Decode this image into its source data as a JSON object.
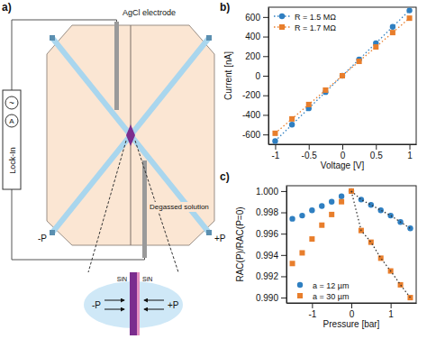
{
  "chart_data": [
    {
      "panel": "b)",
      "type": "scatter",
      "x_label": "Voltage [V]",
      "y_label": "Current [nA]",
      "x": [
        -1,
        -0.75,
        -0.5,
        -0.25,
        0,
        0.25,
        0.5,
        0.75,
        1
      ],
      "xlim": [
        -1.1,
        1.1
      ],
      "xticks": [
        -1,
        -0.5,
        0,
        0.5,
        1
      ],
      "ylim": [
        -700,
        700
      ],
      "yticks": [
        -600,
        -400,
        -200,
        0,
        200,
        400,
        600
      ],
      "grid": false,
      "legend": "upper left",
      "series": [
        {
          "name": "R = 1.5 MΩ",
          "color": "#2f7fc1",
          "marker": "circle",
          "line_style": "dotted",
          "values": [
            -667,
            -500,
            -333,
            -167,
            0,
            167,
            333,
            500,
            667
          ]
        },
        {
          "name": "R = 1.7 MΩ",
          "color": "#e87e2c",
          "marker": "square",
          "line_style": "dotted",
          "values": [
            -588,
            -441,
            -294,
            -147,
            0,
            147,
            294,
            441,
            588
          ]
        }
      ]
    },
    {
      "panel": "c)",
      "type": "scatter",
      "x_label": "Pressure [bar]",
      "y_label": "RAC(P)/RAC(P=0)",
      "x": [
        -1.5,
        -1.25,
        -1,
        -0.75,
        -0.5,
        -0.25,
        0,
        0.25,
        0.5,
        0.75,
        1,
        1.25,
        1.5
      ],
      "xlim": [
        -1.65,
        1.65
      ],
      "xticks": [
        -1,
        0,
        1
      ],
      "ylim": [
        0.9895,
        1.0005
      ],
      "yticks": [
        {
          "value": 0.99,
          "label": "0.990"
        },
        {
          "value": 0.992,
          "label": "0.992"
        },
        {
          "value": 0.994,
          "label": "0.994"
        },
        {
          "value": 0.996,
          "label": "0.996"
        },
        {
          "value": 0.998,
          "label": "0.998"
        },
        {
          "value": 1,
          "label": "1.000"
        }
      ],
      "grid": false,
      "legend": "lower left",
      "series": [
        {
          "name": "a = 12 µm",
          "color": "#2f7fc1",
          "marker": "circle",
          "values": [
            0.9974,
            0.9977,
            0.9982,
            0.9986,
            0.999,
            0.9995,
            1,
            0.9992,
            0.9987,
            0.9982,
            0.9977,
            0.9971,
            0.9965
          ]
        },
        {
          "name": "a = 30 µm",
          "color": "#e87e2c",
          "marker": "square",
          "values": [
            0.9932,
            0.9942,
            0.9955,
            0.9968,
            0.9978,
            0.999,
            1,
            0.9963,
            0.9952,
            0.9937,
            0.9925,
            0.9912,
            0.99
          ]
        },
        {
          "type": "line",
          "color": "#333333",
          "line_style": "dotted",
          "values": [
            null,
            null,
            null,
            null,
            null,
            null,
            1,
            0.9992,
            0.9987,
            0.9982,
            0.9977,
            0.9971,
            0.9965
          ]
        },
        {
          "type": "line",
          "color": "#333333",
          "line_style": "dotted",
          "values": [
            null,
            null,
            null,
            null,
            null,
            null,
            1,
            0.9963,
            0.9952,
            0.9937,
            0.9925,
            0.9912,
            0.99
          ]
        }
      ]
    }
  ],
  "diagram": {
    "panel": "a)",
    "electrode": "AgCl electrode",
    "lock_in": "Lock-In",
    "source": "~",
    "meter": "A",
    "inlet": "-P",
    "outlet": "+P",
    "solution": "Degassed solution",
    "inset": {
      "left": "-P",
      "right": "+P",
      "membrane_left": "SiN",
      "membrane_right": "SiN"
    }
  }
}
